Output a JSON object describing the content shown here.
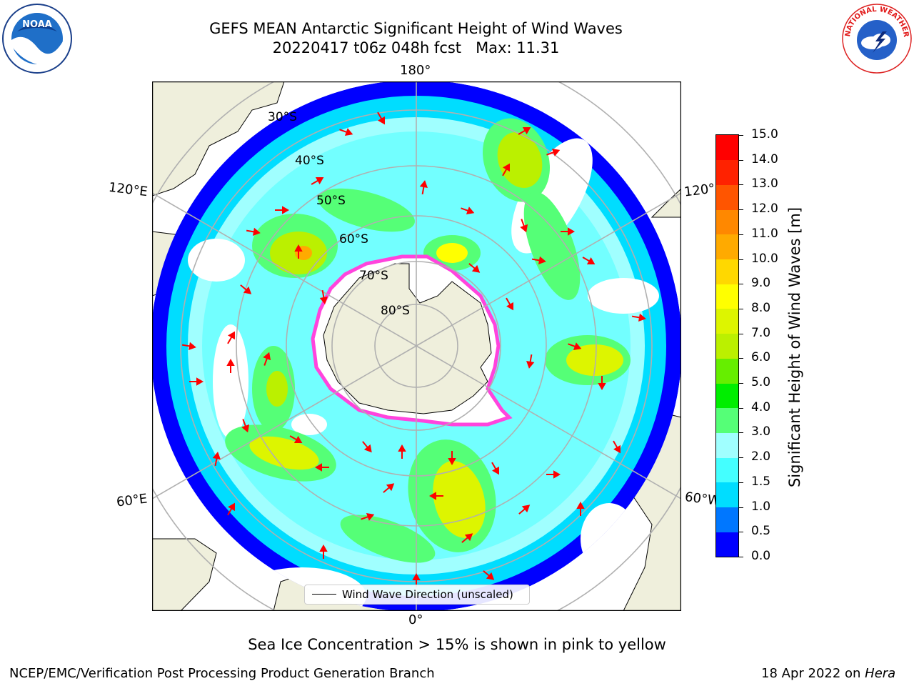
{
  "header": {
    "title_line1": "GEFS MEAN Antarctic Significant Height of Wind Waves",
    "title_line2": "20220417 t06z 048h fcst   Max: 11.31"
  },
  "logos": {
    "left": {
      "icon": "noaa-logo-icon",
      "text": "NOAA"
    },
    "right": {
      "icon": "nws-logo-icon",
      "text": "NATIONAL WEATHER SERVICE"
    }
  },
  "map": {
    "projection": "south-polar-stereographic",
    "edge_labels": {
      "top": "180°",
      "bottom": "0°",
      "upper_left": "120°E",
      "upper_right": "120°",
      "lower_left": "60°E",
      "lower_right": "60°W"
    },
    "latitude_labels": [
      "30°S",
      "40°S",
      "50°S",
      "60°S",
      "70°S",
      "80°S"
    ],
    "colors": {
      "land": "#efefdc",
      "grid": "#b0b0b0",
      "vector": "#ff0000",
      "ice_edge": "#ff44dd"
    }
  },
  "colorbar": {
    "title": "Significant Height of Wind Waves [m]",
    "tick_labels": [
      "0.0",
      "0.5",
      "1.0",
      "1.5",
      "2.0",
      "3.0",
      "4.0",
      "5.0",
      "6.0",
      "7.0",
      "8.0",
      "9.0",
      "10.0",
      "11.0",
      "12.0",
      "13.0",
      "14.0",
      "15.0"
    ],
    "colors": [
      "#0000ff",
      "#0077ff",
      "#00ddff",
      "#44ffff",
      "#a0ffff",
      "#55ff77",
      "#00ee00",
      "#66ee00",
      "#bbf000",
      "#ddf500",
      "#ffff00",
      "#ffd800",
      "#ffaa00",
      "#ff8800",
      "#ff5500",
      "#ff2200",
      "#ff0000"
    ]
  },
  "legend": {
    "label": "Wind Wave Direction (unscaled)"
  },
  "footer": {
    "note": "Sea Ice Concentration > 15% is shown in pink to yellow",
    "credit": "NCEP/EMC/Verification Post Processing Product Generation Branch",
    "date_prefix": "18 Apr 2022 on ",
    "system": "Hera"
  }
}
